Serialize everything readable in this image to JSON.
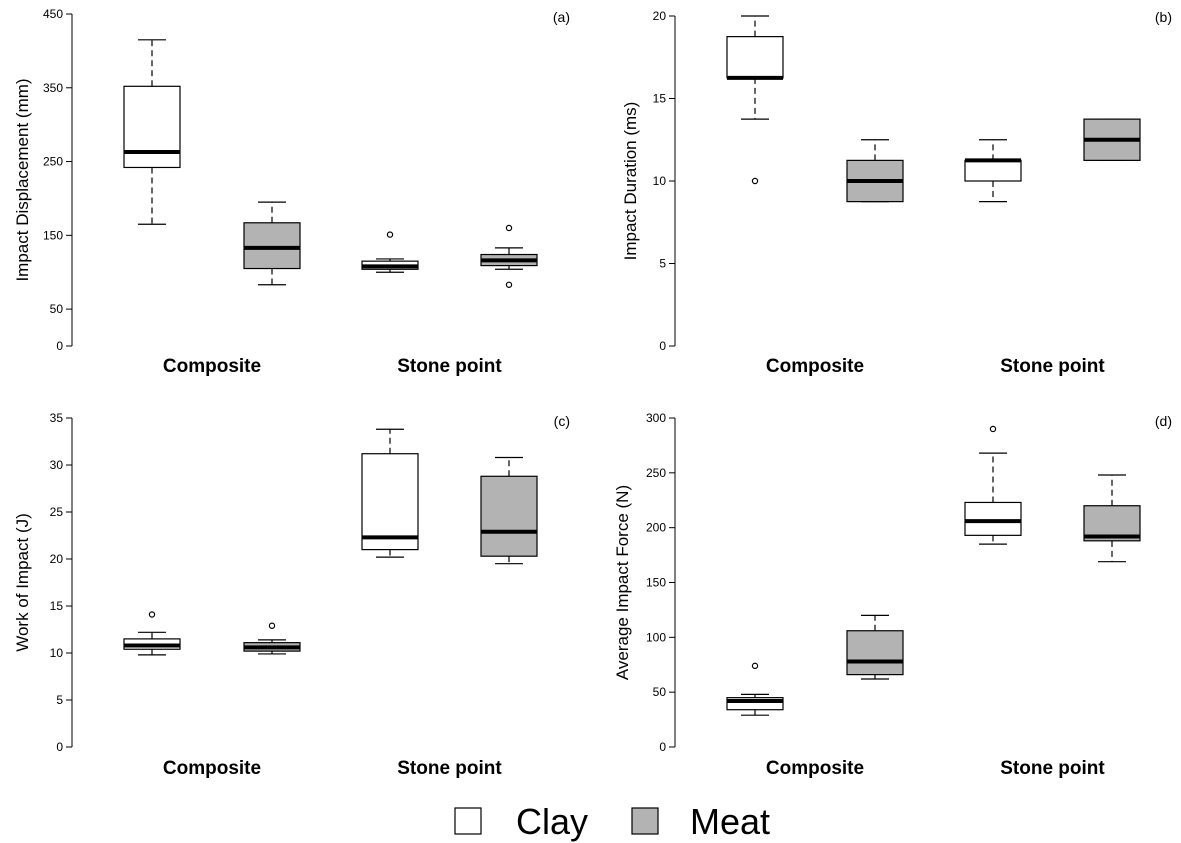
{
  "chart_data": [
    {
      "type": "boxplot",
      "panel_tag": "(a)",
      "ylabel": "Impact Displacement (mm)",
      "yticks": [
        0,
        50,
        150,
        250,
        350,
        450
      ],
      "ylim": [
        0,
        450
      ],
      "categories": [
        "Composite",
        "Stone point"
      ],
      "boxes": [
        {
          "category": "Composite",
          "series": "Clay",
          "whisker_low": 165,
          "q1": 242,
          "median": 263,
          "q3": 352,
          "whisker_high": 415,
          "outliers": []
        },
        {
          "category": "Composite",
          "series": "Meat",
          "whisker_low": 83,
          "q1": 105,
          "median": 133,
          "q3": 167,
          "whisker_high": 195,
          "outliers": []
        },
        {
          "category": "Stone point",
          "series": "Clay",
          "whisker_low": 100,
          "q1": 104,
          "median": 108,
          "q3": 115,
          "whisker_high": 118,
          "outliers": [
            151
          ]
        },
        {
          "category": "Stone point",
          "series": "Meat",
          "whisker_low": 104,
          "q1": 109,
          "median": 116,
          "q3": 124,
          "whisker_high": 133,
          "outliers": [
            160,
            83
          ]
        }
      ]
    },
    {
      "type": "boxplot",
      "panel_tag": "(b)",
      "ylabel": "Impact Duration (ms)",
      "yticks": [
        0,
        5,
        10,
        15,
        20
      ],
      "ylim": [
        0,
        20
      ],
      "categories": [
        "Composite",
        "Stone point"
      ],
      "boxes": [
        {
          "category": "Composite",
          "series": "Clay",
          "whisker_low": 13.75,
          "q1": 16.25,
          "median": 16.25,
          "q3": 18.75,
          "whisker_high": 20,
          "outliers": [
            10
          ]
        },
        {
          "category": "Composite",
          "series": "Meat",
          "whisker_low": 8.75,
          "q1": 8.75,
          "median": 10,
          "q3": 11.25,
          "whisker_high": 12.5,
          "outliers": []
        },
        {
          "category": "Stone point",
          "series": "Clay",
          "whisker_low": 8.75,
          "q1": 10,
          "median": 11.25,
          "q3": 11.25,
          "whisker_high": 12.5,
          "outliers": []
        },
        {
          "category": "Stone point",
          "series": "Meat",
          "whisker_low": 11.25,
          "q1": 11.25,
          "median": 12.5,
          "q3": 13.75,
          "whisker_high": 13.75,
          "outliers": []
        }
      ]
    },
    {
      "type": "boxplot",
      "panel_tag": "(c)",
      "ylabel": "Work of Impact (J)",
      "yticks": [
        0,
        5,
        10,
        15,
        20,
        25,
        30,
        35
      ],
      "ylim": [
        0,
        35
      ],
      "categories": [
        "Composite",
        "Stone point"
      ],
      "boxes": [
        {
          "category": "Composite",
          "series": "Clay",
          "whisker_low": 9.8,
          "q1": 10.4,
          "median": 10.8,
          "q3": 11.5,
          "whisker_high": 12.2,
          "outliers": [
            14.1
          ]
        },
        {
          "category": "Composite",
          "series": "Meat",
          "whisker_low": 9.9,
          "q1": 10.2,
          "median": 10.6,
          "q3": 11.1,
          "whisker_high": 11.4,
          "outliers": [
            12.9
          ]
        },
        {
          "category": "Stone point",
          "series": "Clay",
          "whisker_low": 20.2,
          "q1": 21,
          "median": 22.3,
          "q3": 31.2,
          "whisker_high": 33.8,
          "outliers": []
        },
        {
          "category": "Stone point",
          "series": "Meat",
          "whisker_low": 19.5,
          "q1": 20.3,
          "median": 22.9,
          "q3": 28.8,
          "whisker_high": 30.8,
          "outliers": []
        }
      ]
    },
    {
      "type": "boxplot",
      "panel_tag": "(d)",
      "ylabel": "Average Impact Force (N)",
      "yticks": [
        0,
        50,
        100,
        150,
        200,
        250,
        300
      ],
      "ylim": [
        0,
        300
      ],
      "categories": [
        "Composite",
        "Stone point"
      ],
      "boxes": [
        {
          "category": "Composite",
          "series": "Clay",
          "whisker_low": 29,
          "q1": 34,
          "median": 42,
          "q3": 45,
          "whisker_high": 48,
          "outliers": [
            74
          ]
        },
        {
          "category": "Composite",
          "series": "Meat",
          "whisker_low": 62,
          "q1": 66,
          "median": 78,
          "q3": 106,
          "whisker_high": 120,
          "outliers": []
        },
        {
          "category": "Stone point",
          "series": "Clay",
          "whisker_low": 185,
          "q1": 193,
          "median": 206,
          "q3": 223,
          "whisker_high": 268,
          "outliers": [
            290
          ]
        },
        {
          "category": "Stone point",
          "series": "Meat",
          "whisker_low": 169,
          "q1": 188,
          "median": 192,
          "q3": 220,
          "whisker_high": 248,
          "outliers": []
        }
      ]
    }
  ],
  "legend": {
    "position": "bottom-center",
    "items": [
      {
        "label": "Clay",
        "color": "#ffffff"
      },
      {
        "label": "Meat",
        "color": "#b3b3b3"
      }
    ]
  },
  "colors": {
    "Clay": "#ffffff",
    "Meat": "#b3b3b3"
  }
}
